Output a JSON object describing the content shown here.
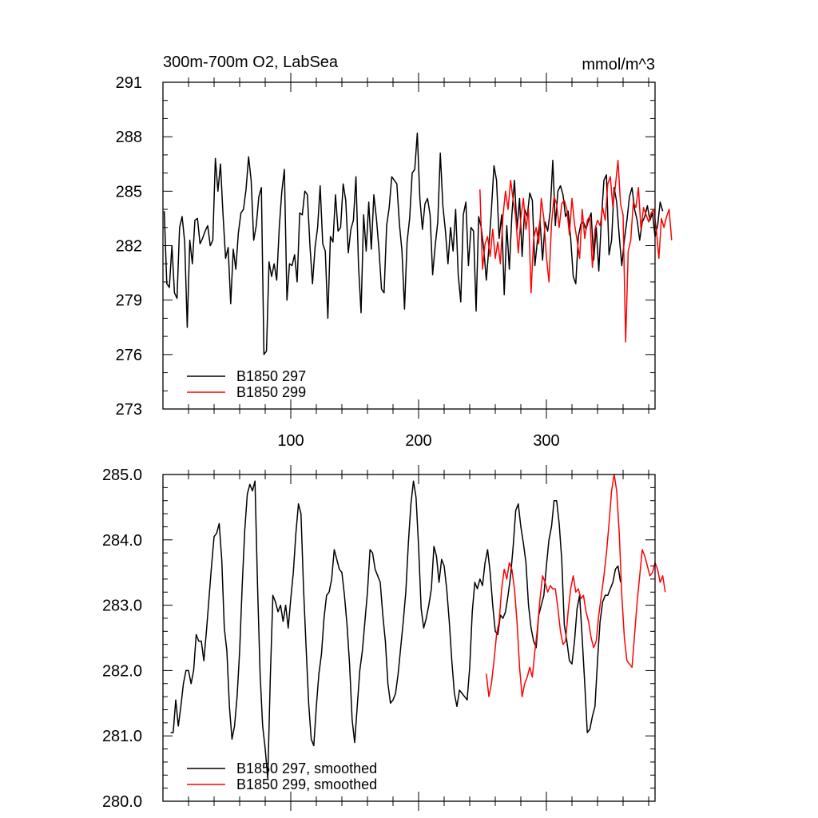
{
  "chart_data": [
    {
      "type": "line",
      "title": "300m-700m O2, LabSea",
      "units": "mmol/m^3",
      "xlim": [
        0,
        385
      ],
      "ylim": [
        273,
        291
      ],
      "x_ticks": [
        100,
        200,
        300
      ],
      "y_ticks": [
        273,
        276,
        279,
        282,
        285,
        288,
        291
      ],
      "y_tick_labels": [
        "273",
        "276",
        "279",
        "282",
        "285",
        "288",
        "291"
      ],
      "grid": false,
      "legend_placement": "bottom-left",
      "series": [
        {
          "name": "B1850 297",
          "color": "#000000",
          "x_start": 1,
          "x_step": 2,
          "values": [
            283.9,
            279.9,
            279.7,
            282.0,
            279.4,
            279.1,
            283.0,
            283.6,
            282.2,
            277.5,
            282.3,
            281.0,
            283.4,
            283.5,
            282.1,
            282.4,
            282.8,
            283.1,
            282.0,
            282.3,
            286.8,
            285.0,
            286.5,
            283.7,
            281.3,
            281.9,
            278.8,
            281.8,
            280.7,
            282.7,
            283.8,
            284.0,
            285.1,
            286.9,
            285.6,
            282.3,
            283.1,
            284.7,
            285.2,
            276.0,
            276.2,
            281.1,
            280.3,
            281.0,
            280.1,
            283.0,
            285.0,
            286.2,
            279.0,
            281.0,
            280.9,
            281.5,
            280.0,
            283.8,
            283.7,
            285.0,
            284.8,
            282.0,
            279.9,
            281.9,
            283.0,
            285.3,
            282.1,
            281.7,
            278.0,
            282.5,
            282.2,
            284.8,
            282.8,
            283.0,
            285.4,
            284.5,
            281.6,
            282.9,
            283.4,
            285.8,
            280.9,
            278.3,
            283.7,
            281.7,
            284.4,
            281.8,
            284.8,
            283.5,
            281.8,
            279.6,
            279.4,
            283.1,
            284.1,
            285.8,
            285.6,
            285.4,
            283.2,
            281.7,
            278.5,
            282.2,
            283.5,
            286.0,
            286.2,
            288.2,
            284.6,
            282.9,
            284.3,
            284.6,
            283.7,
            280.4,
            282.0,
            283.3,
            287.1,
            284.2,
            282.8,
            281.0,
            283.0,
            281.7,
            284.0,
            280.4,
            278.9,
            283.7,
            284.4,
            280.9,
            283.0,
            282.8,
            278.4,
            283.6,
            283.0,
            281.8,
            280.1,
            281.9,
            284.0,
            286.4,
            285.6,
            282.4,
            283.7,
            279.3,
            283.1,
            280.7,
            283.7,
            285.6,
            282.9,
            284.6,
            281.4,
            284.0,
            283.6,
            284.9,
            284.5,
            280.9,
            282.3,
            283.4,
            281.2,
            283.3,
            282.8,
            283.9,
            286.7,
            283.1,
            285.0,
            285.3,
            284.8,
            283.6,
            283.9,
            282.4,
            280.3,
            279.9,
            282.5,
            283.2,
            283.3,
            282.9,
            283.4,
            283.8,
            281.2,
            283.0,
            280.6,
            283.4,
            285.6,
            285.9,
            281.5,
            282.3,
            285.2,
            284.4,
            282.5,
            280.9,
            282.3,
            283.4,
            284.7,
            285.2,
            284.0,
            283.4,
            282.3,
            283.3,
            283.6,
            284.2,
            283.4,
            283.8,
            282.5,
            283.1,
            284.4,
            283.9
          ]
        },
        {
          "name": "B1850 299",
          "color": "#ff0000",
          "x_start": 248,
          "x_step": 2,
          "values": [
            285.1,
            280.7,
            282.1,
            282.5,
            281.4,
            282.9,
            281.3,
            282.2,
            281.0,
            283.6,
            285.0,
            284.0,
            285.6,
            284.5,
            283.6,
            281.6,
            283.5,
            284.6,
            282.9,
            284.0,
            279.4,
            282.4,
            283.0,
            282.1,
            284.6,
            283.5,
            281.4,
            280.0,
            283.2,
            284.7,
            284.3,
            283.0,
            284.3,
            284.5,
            284.0,
            282.6,
            284.6,
            283.2,
            282.3,
            281.3,
            284.0,
            282.4,
            283.4,
            283.6,
            280.8,
            282.9,
            283.4,
            283.1,
            284.1,
            283.4,
            285.4,
            285.8,
            284.1,
            285.3,
            286.7,
            284.3,
            283.7,
            276.7,
            281.7,
            282.3,
            284.4,
            284.1,
            285.2,
            282.9,
            284.1,
            283.7,
            283.3,
            283.8,
            284.0,
            282.9,
            281.3,
            283.5,
            283.0,
            283.6,
            284.0,
            282.3
          ]
        }
      ]
    },
    {
      "type": "line",
      "xlim": [
        0,
        385
      ],
      "ylim": [
        280.0,
        285.0
      ],
      "y_ticks": [
        280.0,
        281.0,
        282.0,
        283.0,
        284.0,
        285.0
      ],
      "y_tick_labels": [
        "280.0",
        "281.0",
        "282.0",
        "283.0",
        "284.0",
        "285.0"
      ],
      "grid": false,
      "legend_placement": "bottom-left",
      "series": [
        {
          "name": "B1850 297, smoothed",
          "color": "#000000",
          "x_start": 6,
          "x_step": 2,
          "values": [
            281.05,
            281.05,
            281.55,
            281.15,
            281.45,
            281.8,
            282.0,
            282.0,
            281.8,
            282.0,
            282.55,
            282.45,
            282.45,
            282.15,
            282.6,
            283.1,
            283.6,
            284.05,
            284.1,
            284.25,
            283.7,
            282.65,
            282.3,
            281.45,
            280.95,
            281.15,
            281.6,
            282.3,
            283.3,
            284.15,
            284.7,
            284.85,
            284.75,
            284.9,
            283.3,
            281.95,
            281.15,
            280.8,
            280.35,
            281.9,
            283.15,
            283.05,
            282.9,
            283.0,
            282.75,
            283.0,
            282.65,
            283.1,
            283.5,
            284.1,
            284.55,
            284.4,
            283.25,
            282.35,
            281.5,
            280.95,
            280.85,
            281.45,
            281.95,
            282.25,
            282.8,
            283.15,
            283.2,
            283.4,
            283.85,
            283.7,
            283.55,
            283.5,
            283.15,
            282.7,
            282.1,
            281.25,
            280.9,
            281.45,
            282.0,
            282.3,
            282.75,
            283.2,
            283.85,
            283.8,
            283.55,
            283.45,
            283.35,
            282.85,
            282.45,
            281.8,
            281.5,
            281.55,
            281.65,
            281.95,
            282.35,
            282.75,
            283.2,
            283.95,
            284.55,
            284.9,
            284.65,
            283.9,
            282.95,
            282.65,
            282.8,
            283.0,
            283.25,
            283.9,
            283.75,
            283.35,
            283.7,
            283.6,
            283.25,
            282.75,
            282.15,
            281.65,
            281.45,
            281.7,
            281.65,
            281.6,
            281.55,
            282.05,
            282.9,
            283.35,
            283.25,
            283.4,
            283.3,
            283.65,
            283.85,
            283.5,
            283.0,
            282.6,
            282.55,
            282.85,
            282.8,
            282.9,
            283.15,
            283.45,
            283.9,
            284.45,
            284.55,
            284.2,
            283.95,
            283.65,
            283.0,
            282.65,
            282.45,
            282.35,
            282.85,
            283.0,
            283.15,
            283.6,
            284.0,
            284.2,
            284.6,
            284.6,
            284.25,
            283.7,
            282.7,
            282.45,
            282.15,
            282.1,
            282.45,
            282.95,
            283.15,
            282.5,
            281.8,
            281.05,
            281.1,
            281.3,
            281.45,
            282.15,
            282.75,
            283.05,
            283.15,
            283.15,
            283.25,
            283.35,
            283.55,
            283.6,
            283.35
          ]
        },
        {
          "name": "B1850 299, smoothed",
          "color": "#ff0000",
          "x_start": 253,
          "x_step": 2,
          "values": [
            281.95,
            281.6,
            281.8,
            282.15,
            282.55,
            282.75,
            283.25,
            283.55,
            283.4,
            283.65,
            283.55,
            283.25,
            282.75,
            282.05,
            281.6,
            281.8,
            281.9,
            282.05,
            281.9,
            282.3,
            282.65,
            283.1,
            283.45,
            283.35,
            283.2,
            283.3,
            283.25,
            283.25,
            282.95,
            282.6,
            282.4,
            282.45,
            282.9,
            283.25,
            283.45,
            283.2,
            283.25,
            283.1,
            283.15,
            282.9,
            282.75,
            282.5,
            282.35,
            282.45,
            282.85,
            283.15,
            283.45,
            283.8,
            284.25,
            284.75,
            285.0,
            284.75,
            284.1,
            283.15,
            282.5,
            282.15,
            282.1,
            282.05,
            282.55,
            283.05,
            283.45,
            283.85,
            283.75,
            283.6,
            283.45,
            283.5,
            283.65,
            283.55,
            283.35,
            283.45,
            283.2
          ]
        }
      ]
    }
  ]
}
